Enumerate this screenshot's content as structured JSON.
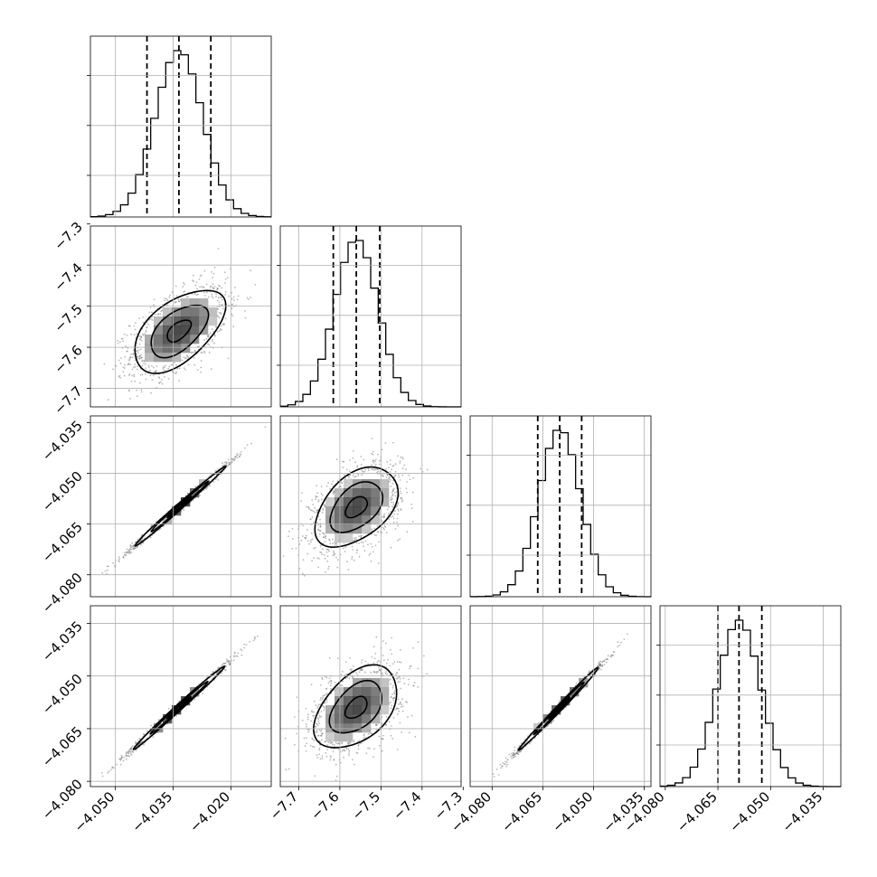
{
  "chart_data": {
    "type": "corner",
    "grid": true,
    "quantile_lines": "dashed",
    "params": [
      {
        "mean": -4.0335,
        "sd": 0.0062,
        "quantiles": [
          -4.0418,
          -4.0335,
          -4.0252
        ],
        "xlim": [
          -4.0565,
          -4.0095
        ],
        "ticks": [
          -4.05,
          -4.035,
          -4.02
        ],
        "tick_labels": [
          "−4.050",
          "−4.035",
          "−4.020"
        ]
      },
      {
        "mean": -7.56,
        "sd": 0.053,
        "quantiles": [
          -7.616,
          -7.56,
          -7.503
        ],
        "xlim": [
          -7.745,
          -7.305
        ],
        "ticks": [
          -7.7,
          -7.6,
          -7.5,
          -7.4,
          -7.3
        ],
        "tick_labels": [
          "−7.7",
          "−7.6",
          "−7.5",
          "−7.4",
          "−7.3"
        ]
      },
      {
        "mean": -4.06,
        "sd": 0.0062,
        "quantiles": [
          -4.0665,
          -4.06,
          -4.0535
        ],
        "xlim": [
          -4.0865,
          -4.033
        ],
        "ticks": [
          -4.08,
          -4.065,
          -4.05,
          -4.035
        ],
        "tick_labels": [
          "−4.080",
          "−4.065",
          "−4.050",
          "−4.035"
        ]
      },
      {
        "mean": -4.059,
        "sd": 0.0062,
        "quantiles": [
          -4.065,
          -4.059,
          -4.0525
        ],
        "xlim": [
          -4.0815,
          -4.03
        ],
        "ticks": [
          -4.08,
          -4.065,
          -4.05,
          -4.035
        ],
        "tick_labels": [
          "−4.080",
          "−4.065",
          "−4.050",
          "−4.035"
        ]
      }
    ],
    "y_ticks": {
      "row1": [
        "−7.3",
        "−7.4",
        "−7.5",
        "−7.6",
        "−7.7"
      ],
      "row2": [
        "−4.035",
        "−4.050",
        "−4.065",
        "−4.080"
      ],
      "row3": [
        "−4.035",
        "−4.050",
        "−4.065",
        "−4.080"
      ]
    },
    "correlations": [
      {
        "row": 1,
        "col": 0,
        "rho": 0.55
      },
      {
        "row": 2,
        "col": 0,
        "rho": 0.995
      },
      {
        "row": 2,
        "col": 1,
        "rho": 0.45
      },
      {
        "row": 3,
        "col": 0,
        "rho": 0.995
      },
      {
        "row": 3,
        "col": 1,
        "rho": 0.45
      },
      {
        "row": 3,
        "col": 2,
        "rho": 0.995
      }
    ],
    "colors": {
      "line": "#000000",
      "grid": "#b0b0b0",
      "points": "#808080"
    }
  }
}
